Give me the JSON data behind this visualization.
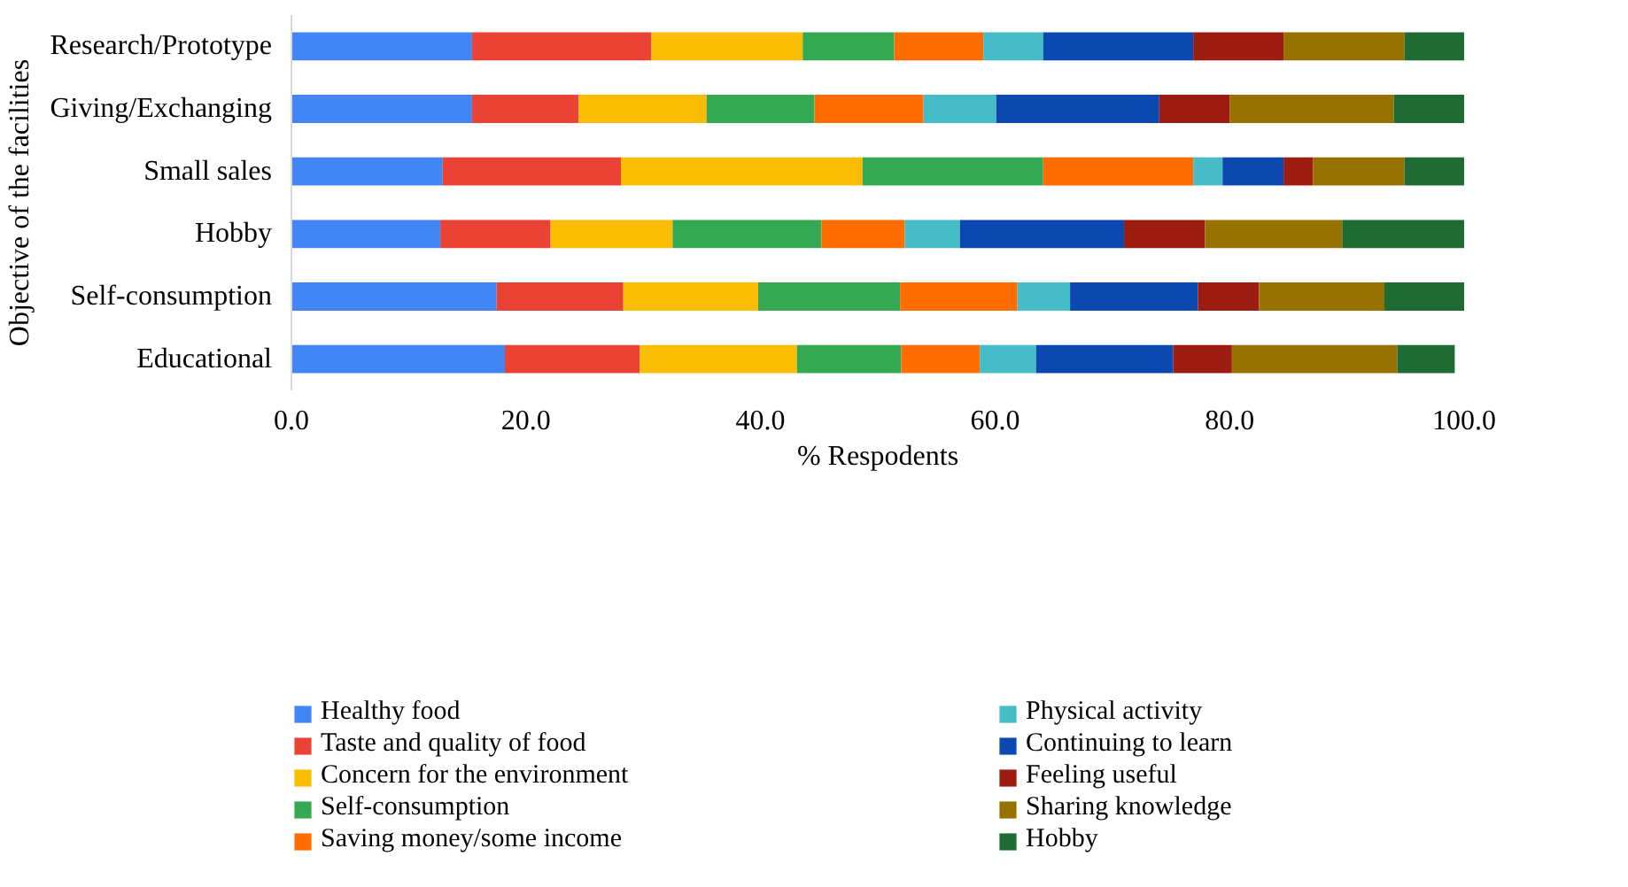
{
  "chart_data": {
    "type": "bar",
    "orientation": "horizontal",
    "stacked": true,
    "xlabel": "% Respodents",
    "ylabel": "Objective of the facilities",
    "categories": [
      "Research/Prototype",
      "Giving/Exchanging",
      "Small sales",
      "Hobby",
      "Self-consumption",
      "Educational"
    ],
    "xlim": [
      0,
      100
    ],
    "xticks": [
      {
        "value": 0,
        "label": "0.0"
      },
      {
        "value": 20,
        "label": "20.0"
      },
      {
        "value": 40,
        "label": "40.0"
      },
      {
        "value": 60,
        "label": "60.0"
      },
      {
        "value": 80,
        "label": "80.0"
      },
      {
        "value": 100,
        "label": "100.0"
      }
    ],
    "grid": false,
    "legend": "bottom",
    "series": [
      {
        "name": "Healthy food",
        "color": "#4285f4",
        "values": [
          15.4,
          15.4,
          12.9,
          12.7,
          17.5,
          18.2
        ]
      },
      {
        "name": "Taste and quality of food",
        "color": "#ea4335",
        "values": [
          15.3,
          9.1,
          15.2,
          9.4,
          10.8,
          11.5
        ]
      },
      {
        "name": "Concern for the environment",
        "color": "#fbbc04",
        "values": [
          12.9,
          10.9,
          20.6,
          10.4,
          11.5,
          13.4
        ]
      },
      {
        "name": "Self-consumption",
        "color": "#34a853",
        "values": [
          7.8,
          9.2,
          15.4,
          12.7,
          12.1,
          8.9
        ]
      },
      {
        "name": "Saving money/some income",
        "color": "#ff6d01",
        "values": [
          7.6,
          9.3,
          12.8,
          7.1,
          10.0,
          6.7
        ]
      },
      {
        "name": "Physical activity",
        "color": "#46bdc6",
        "values": [
          5.1,
          6.2,
          2.5,
          4.7,
          4.5,
          4.8
        ]
      },
      {
        "name": "Continuing to learn",
        "color": "#0b48b0",
        "values": [
          12.8,
          13.9,
          5.2,
          14.0,
          10.9,
          11.7
        ]
      },
      {
        "name": "Feeling useful",
        "color": "#9c1c12",
        "values": [
          7.7,
          6.0,
          2.5,
          6.9,
          5.2,
          5.0
        ]
      },
      {
        "name": "Sharing knowledge",
        "color": "#977200",
        "values": [
          10.3,
          14.0,
          7.8,
          11.7,
          10.7,
          14.1
        ]
      },
      {
        "name": "Hobby",
        "color": "#1e6b34",
        "values": [
          5.1,
          6.0,
          5.1,
          10.4,
          6.8,
          4.9
        ]
      }
    ]
  }
}
